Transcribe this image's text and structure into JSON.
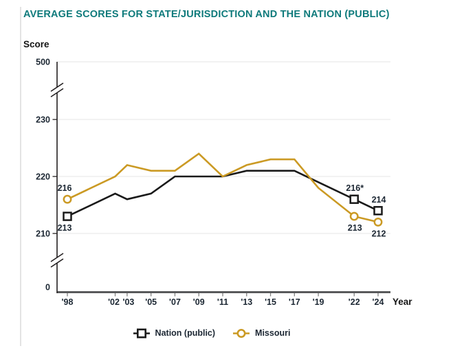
{
  "page": {
    "title": "AVERAGE SCORES FOR STATE/JURISDICTION AND THE NATION (PUBLIC)"
  },
  "colors": {
    "title_teal": "#0e7a7b",
    "nation_black": "#1a1a1a",
    "missouri_gold": "#cb9a24",
    "gridline_gray": "#ededed",
    "x_axis_gray": "#58595b",
    "y_axis_black": "#231f20",
    "label_dark": "#1c2733"
  },
  "chart_data": {
    "type": "line",
    "title": "AVERAGE SCORES FOR STATE/JURISDICTION AND THE NATION (PUBLIC)",
    "xlabel": "Year",
    "ylabel": "Score",
    "grid": true,
    "legend_position": "bottom",
    "x": [
      1998,
      2002,
      2003,
      2005,
      2007,
      2009,
      2011,
      2013,
      2015,
      2017,
      2019,
      2022,
      2024
    ],
    "x_axis": {
      "label": "Year",
      "tick_labels": [
        "'98",
        "'02",
        "'03",
        "'05",
        "'07",
        "'09",
        "'11",
        "'13",
        "'15",
        "'17",
        "'19",
        "'22",
        "'24"
      ]
    },
    "y_axis": {
      "label": "Score",
      "tick_labels": [
        "500",
        "230",
        "220",
        "210",
        "0"
      ],
      "tick_values": [
        500,
        230,
        220,
        210,
        0
      ],
      "broken_axis": true,
      "breaks": [
        [
          230,
          500
        ],
        [
          0,
          210
        ]
      ],
      "displayed_range": [
        205,
        232
      ]
    },
    "series": [
      {
        "name": "Nation (public)",
        "color": "#1a1a1a",
        "marker": "square",
        "values": [
          213,
          217,
          216,
          217,
          220,
          220,
          220,
          221,
          221,
          221,
          219,
          216,
          214
        ],
        "marker_years": [
          1998,
          2022,
          2024
        ],
        "point_labels": [
          {
            "year": 1998,
            "text": "213",
            "position": "below"
          },
          {
            "year": 2022,
            "text": "216*",
            "position": "above"
          },
          {
            "year": 2024,
            "text": "214",
            "position": "above"
          }
        ]
      },
      {
        "name": "Missouri",
        "color": "#cb9a24",
        "marker": "circle",
        "values": [
          216,
          220,
          222,
          221,
          221,
          224,
          220,
          222,
          223,
          223,
          218,
          213,
          212
        ],
        "marker_years": [
          1998,
          2022,
          2024
        ],
        "point_labels": [
          {
            "year": 1998,
            "text": "216",
            "position": "above"
          },
          {
            "year": 2022,
            "text": "213",
            "position": "below"
          },
          {
            "year": 2024,
            "text": "212",
            "position": "below"
          }
        ]
      }
    ]
  }
}
